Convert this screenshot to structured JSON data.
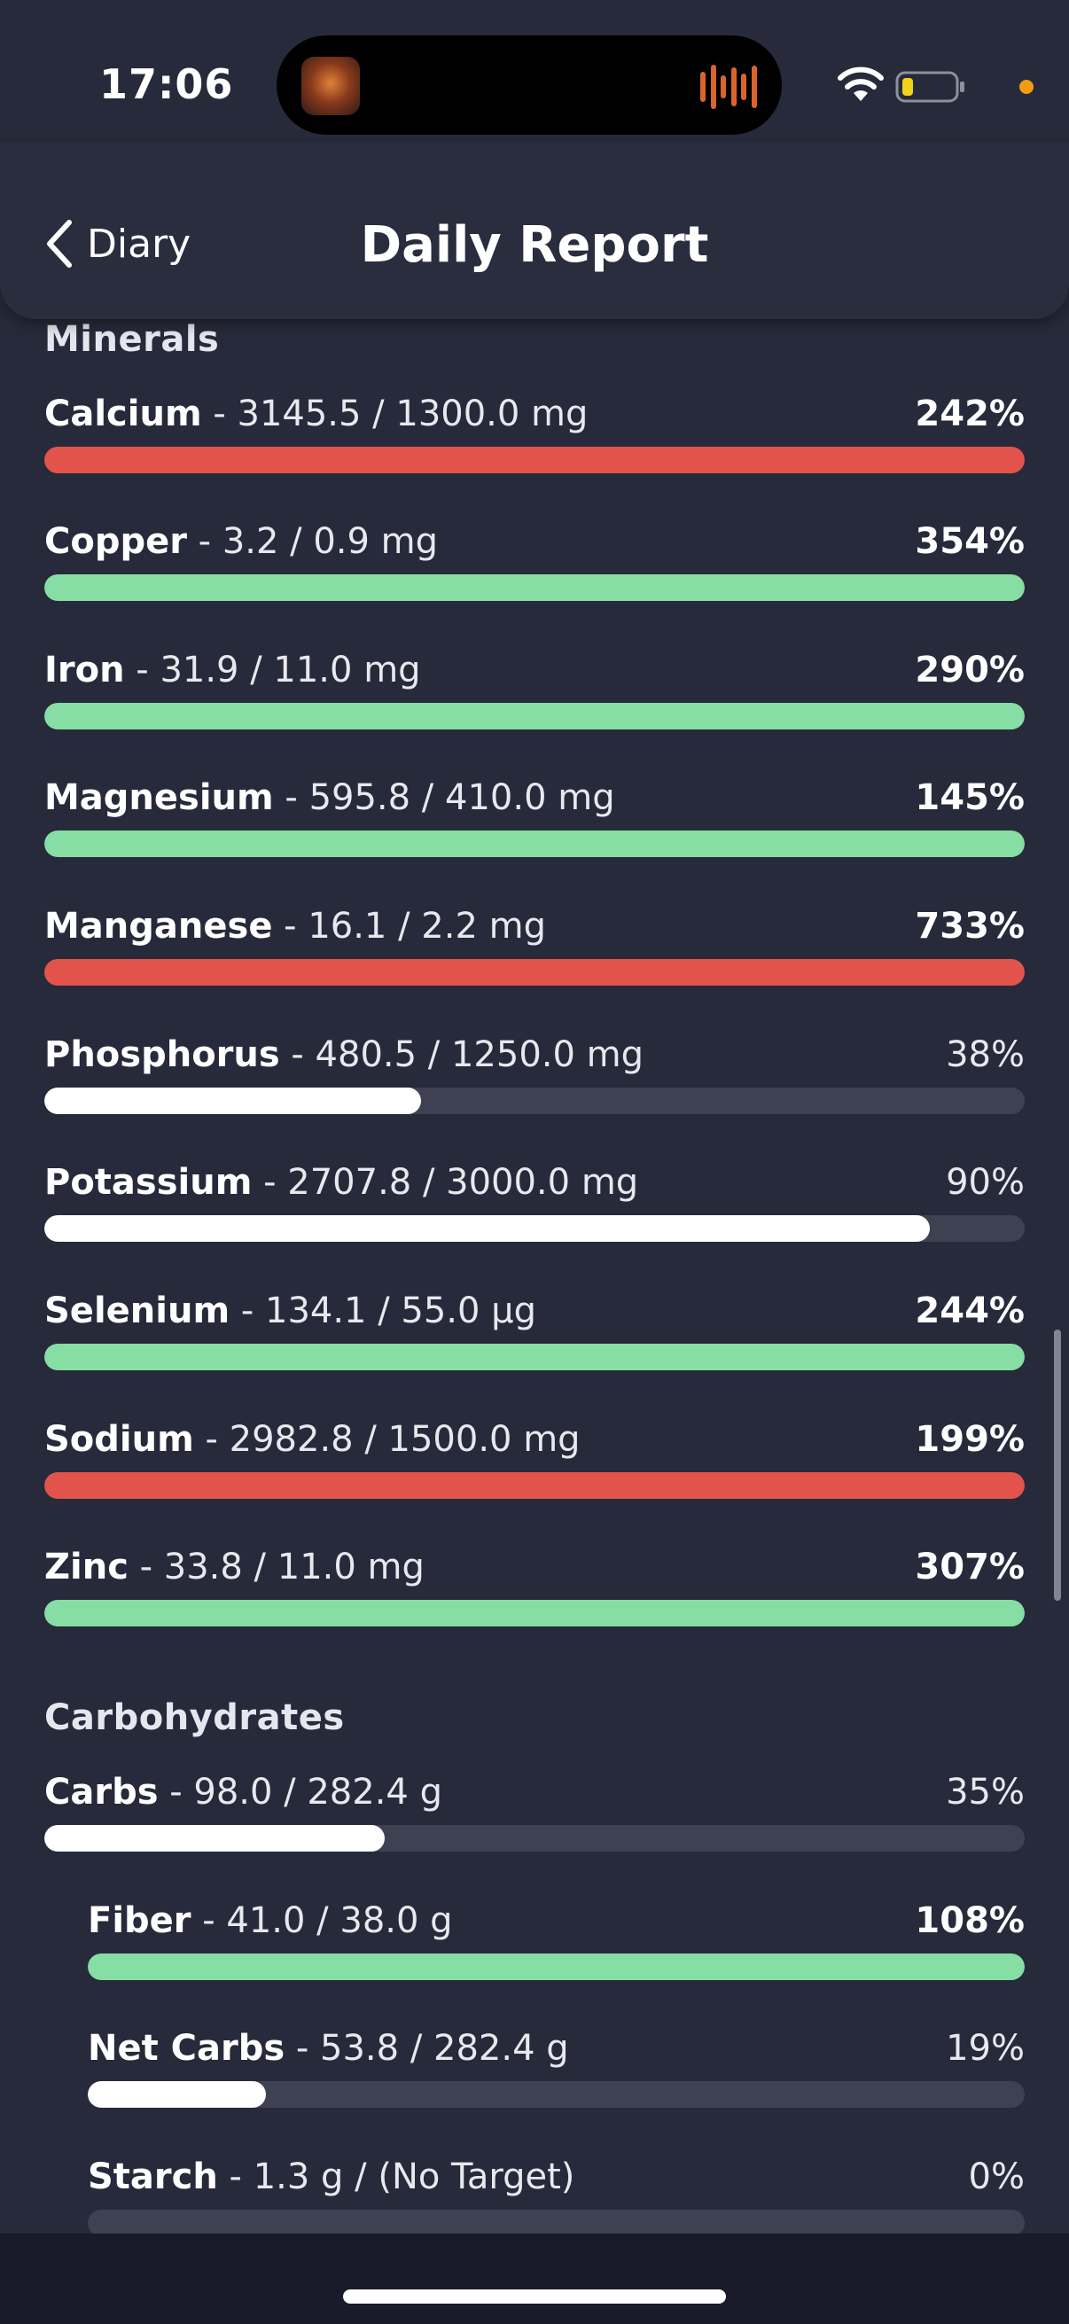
{
  "status_bar": {
    "time": "17:06"
  },
  "header": {
    "back_label": "Diary",
    "title": "Daily Report"
  },
  "colors": {
    "background": "#272a3a",
    "over_limit_red": "#e2534b",
    "target_met_green": "#86dea4",
    "progress_white": "#ffffff",
    "track": "#3d4152"
  },
  "sections": {
    "minerals": {
      "title": "Minerals",
      "items": [
        {
          "name": "Calcium",
          "detail": " - 3145.5 / 1300.0 mg",
          "percent_label": "242%",
          "progress": 1.0,
          "status": "red"
        },
        {
          "name": "Copper",
          "detail": " - 3.2 / 0.9 mg",
          "percent_label": "354%",
          "progress": 1.0,
          "status": "green"
        },
        {
          "name": "Iron",
          "detail": " - 31.9 / 11.0 mg",
          "percent_label": "290%",
          "progress": 1.0,
          "status": "green"
        },
        {
          "name": "Magnesium",
          "detail": " - 595.8 / 410.0 mg",
          "percent_label": "145%",
          "progress": 1.0,
          "status": "green"
        },
        {
          "name": "Manganese",
          "detail": " - 16.1 / 2.2 mg",
          "percent_label": "733%",
          "progress": 1.0,
          "status": "red"
        },
        {
          "name": "Phosphorus",
          "detail": " - 480.5 / 1250.0 mg",
          "percent_label": "38%",
          "progress": 0.384,
          "status": "white"
        },
        {
          "name": "Potassium",
          "detail": " - 2707.8 / 3000.0 mg",
          "percent_label": "90%",
          "progress": 0.903,
          "status": "white"
        },
        {
          "name": "Selenium",
          "detail": " - 134.1 / 55.0 µg",
          "percent_label": "244%",
          "progress": 1.0,
          "status": "green"
        },
        {
          "name": "Sodium",
          "detail": " - 2982.8 / 1500.0 mg",
          "percent_label": "199%",
          "progress": 1.0,
          "status": "red"
        },
        {
          "name": "Zinc",
          "detail": " - 33.8 / 11.0 mg",
          "percent_label": "307%",
          "progress": 1.0,
          "status": "green"
        }
      ]
    },
    "carbohydrates": {
      "title": "Carbohydrates",
      "items": [
        {
          "name": "Carbs",
          "detail": " - 98.0 / 282.4 g",
          "percent_label": "35%",
          "progress": 0.347,
          "status": "white",
          "indent": false
        },
        {
          "name": "Fiber",
          "detail": " - 41.0 / 38.0 g",
          "percent_label": "108%",
          "progress": 1.0,
          "status": "green",
          "indent": true
        },
        {
          "name": "Net Carbs",
          "detail": " - 53.8 / 282.4 g",
          "percent_label": "19%",
          "progress": 0.19,
          "status": "white",
          "indent": true
        },
        {
          "name": "Starch",
          "detail": " - 1.3 g / (No Target)",
          "percent_label": "0%",
          "progress": 0.0,
          "status": "white",
          "indent": true
        }
      ]
    }
  }
}
